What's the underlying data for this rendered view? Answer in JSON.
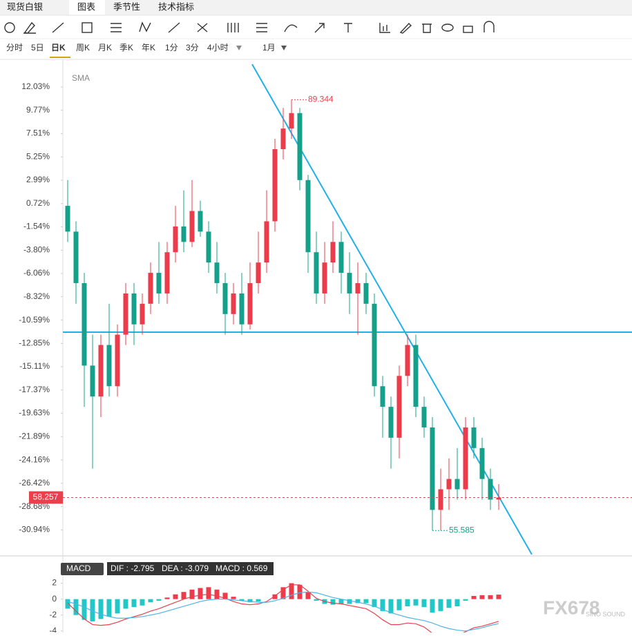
{
  "tabs": [
    "现货白银",
    "图表",
    "季节性",
    "技术指标"
  ],
  "timeframes": [
    "分时",
    "5日",
    "日K",
    "周K",
    "月K",
    "季K",
    "年K",
    "1分",
    "3分",
    "4小时",
    "1月"
  ],
  "chart_data": {
    "type": "candlestick",
    "indicator": "SMA",
    "up_color": "#ec3c4c",
    "down_color": "#14a08a",
    "ylim": [
      -33.33,
      14.24
    ],
    "yticks": [
      {
        "value": 12.03,
        "label": "12.03%"
      },
      {
        "value": 9.77,
        "label": "9.77%"
      },
      {
        "value": 7.51,
        "label": "7.51%"
      },
      {
        "value": 5.25,
        "label": "5.25%"
      },
      {
        "value": 2.99,
        "label": "2.99%"
      },
      {
        "value": 0.72,
        "label": "0.72%"
      },
      {
        "value": -1.54,
        "label": "-1.54%"
      },
      {
        "value": -3.8,
        "label": "-3.80%"
      },
      {
        "value": -6.06,
        "label": "-6.06%"
      },
      {
        "value": -8.32,
        "label": "-8.32%"
      },
      {
        "value": -10.59,
        "label": "-10.59%"
      },
      {
        "value": -12.85,
        "label": "-12.85%"
      },
      {
        "value": -15.11,
        "label": "-15.11%"
      },
      {
        "value": -17.37,
        "label": "-17.37%"
      },
      {
        "value": -19.63,
        "label": "-19.63%"
      },
      {
        "value": -21.89,
        "label": "-21.89%"
      },
      {
        "value": -24.16,
        "label": "-24.16%"
      },
      {
        "value": -26.42,
        "label": "-26.42%"
      },
      {
        "value": -28.68,
        "label": "-28.68%"
      },
      {
        "value": -30.94,
        "label": "-30.94%"
      }
    ],
    "candles": [
      [
        0.5,
        -2,
        3,
        -3
      ],
      [
        -2,
        -7,
        -1,
        -9
      ],
      [
        -7,
        -15,
        -6,
        -19
      ],
      [
        -15,
        -18,
        -12,
        -25
      ],
      [
        -18,
        -13,
        -12,
        -20
      ],
      [
        -13,
        -17,
        -9,
        -18
      ],
      [
        -17,
        -12,
        -11,
        -18
      ],
      [
        -12,
        -8,
        -7,
        -13
      ],
      [
        -8,
        -11,
        -7,
        -13
      ],
      [
        -11,
        -9,
        -8,
        -12
      ],
      [
        -9,
        -6,
        -5,
        -10
      ],
      [
        -6,
        -8,
        -3,
        -9
      ],
      [
        -8,
        -4,
        -3,
        -9
      ],
      [
        -4,
        -1.5,
        0.5,
        -5
      ],
      [
        -1.5,
        -3,
        2,
        -4
      ],
      [
        -3,
        0,
        3,
        -3.5
      ],
      [
        0,
        -2,
        1,
        -2.5
      ],
      [
        -2,
        -5,
        -1,
        -6
      ],
      [
        -5,
        -7,
        -3,
        -8
      ],
      [
        -7,
        -10,
        -6,
        -12
      ],
      [
        -10,
        -8,
        -7,
        -11
      ],
      [
        -8,
        -11,
        -6,
        -12
      ],
      [
        -11,
        -7,
        -5,
        -11.5
      ],
      [
        -7,
        -5,
        -2,
        -8
      ],
      [
        -5,
        -1,
        2,
        -6
      ],
      [
        -1,
        6,
        7,
        -2
      ],
      [
        6,
        8,
        10,
        5
      ],
      [
        8,
        9.5,
        10.8,
        7
      ],
      [
        9.5,
        3,
        10,
        2
      ],
      [
        3,
        -4,
        3.5,
        -6
      ],
      [
        -4,
        -8,
        -2,
        -9
      ],
      [
        -8,
        -5,
        -3,
        -9
      ],
      [
        -5,
        -3,
        -1,
        -6
      ],
      [
        -3,
        -6,
        -2,
        -8
      ],
      [
        -6,
        -8,
        -4,
        -10
      ],
      [
        -8,
        -7,
        -5,
        -12
      ],
      [
        -7,
        -9,
        -6,
        -10
      ],
      [
        -9,
        -17,
        -8,
        -18
      ],
      [
        -17,
        -19,
        -16,
        -22
      ],
      [
        -19,
        -22,
        -18,
        -25
      ],
      [
        -22,
        -16,
        -15,
        -24
      ],
      [
        -16,
        -13,
        -12,
        -17
      ],
      [
        -13,
        -19,
        -12,
        -20
      ],
      [
        -19,
        -21,
        -18,
        -22
      ],
      [
        -21,
        -29,
        -20,
        -31
      ],
      [
        -29,
        -27,
        -25,
        -31
      ],
      [
        -27,
        -26,
        -24,
        -29
      ],
      [
        -26,
        -27,
        -23,
        -28
      ],
      [
        -27,
        -21,
        -20,
        -28
      ],
      [
        -21,
        -23,
        -20,
        -24
      ],
      [
        -23,
        -26,
        -22,
        -28
      ],
      [
        -26,
        -28,
        -25,
        -29
      ],
      [
        -28,
        -27.8,
        -26.5,
        -29
      ]
    ],
    "high_label": 89.344,
    "low_label": 55.585,
    "last_price": 58.257,
    "macd": {
      "name": "MACD",
      "info": [
        "DIF : -2.795",
        "DEA : -3.079",
        "MACD : 0.569"
      ],
      "ylim": [
        -4.2,
        5
      ],
      "yticks": [
        2,
        0,
        -2,
        -4
      ],
      "hist": [
        -1.2,
        -2,
        -2.6,
        -2.8,
        -2.5,
        -2.2,
        -1.8,
        -1.2,
        -1,
        -0.8,
        -0.4,
        -0.2,
        0.2,
        0.6,
        0.9,
        1.2,
        1.4,
        1.5,
        1.2,
        0.8,
        0.3,
        -0.2,
        -0.4,
        -0.3,
        0,
        0.6,
        1.5,
        2,
        1.8,
        0.9,
        -0.2,
        -0.6,
        -0.7,
        -0.6,
        -0.6,
        -0.5,
        -0.5,
        -1,
        -1.5,
        -1.8,
        -1.4,
        -0.9,
        -0.8,
        -1,
        -1.7,
        -1.5,
        -1.1,
        -0.9,
        -0.2,
        0.4,
        0.5,
        0.5,
        0.569
      ],
      "dif": [
        -0.5,
        -1.5,
        -2.5,
        -3.2,
        -3.3,
        -3.2,
        -2.9,
        -2.5,
        -2.2,
        -1.9,
        -1.5,
        -1.2,
        -0.8,
        -0.4,
        0,
        0.3,
        0.5,
        0.6,
        0.4,
        0.1,
        -0.3,
        -0.6,
        -0.7,
        -0.6,
        -0.3,
        0.4,
        1.2,
        1.8,
        1.8,
        1.0,
        0.1,
        -0.3,
        -0.5,
        -0.6,
        -0.8,
        -1.0,
        -1.2,
        -1.8,
        -2.6,
        -3.2,
        -3.2,
        -3.0,
        -3.1,
        -3.5,
        -4.3,
        -4.6,
        -4.6,
        -4.6,
        -4.1,
        -3.6,
        -3.4,
        -3.1,
        -2.795
      ],
      "dea": [
        -0.3,
        -0.6,
        -1.0,
        -1.5,
        -1.9,
        -2.2,
        -2.4,
        -2.4,
        -2.3,
        -2.2,
        -2.0,
        -1.8,
        -1.5,
        -1.2,
        -0.9,
        -0.6,
        -0.3,
        -0.1,
        0,
        0,
        -0.1,
        -0.2,
        -0.3,
        -0.4,
        -0.4,
        -0.2,
        0.1,
        0.5,
        0.8,
        0.9,
        0.8,
        0.5,
        0.2,
        0,
        -0.2,
        -0.4,
        -0.6,
        -0.9,
        -1.3,
        -1.7,
        -2.0,
        -2.3,
        -2.5,
        -2.7,
        -3.0,
        -3.4,
        -3.7,
        -3.9,
        -4.0,
        -3.8,
        -3.6,
        -3.3,
        -3.079
      ],
      "dif_color": "#e8404c",
      "dea_color": "#4fb3e8"
    }
  },
  "watermark": {
    "brand": "FX678",
    "sub": "SINO SOUND"
  }
}
